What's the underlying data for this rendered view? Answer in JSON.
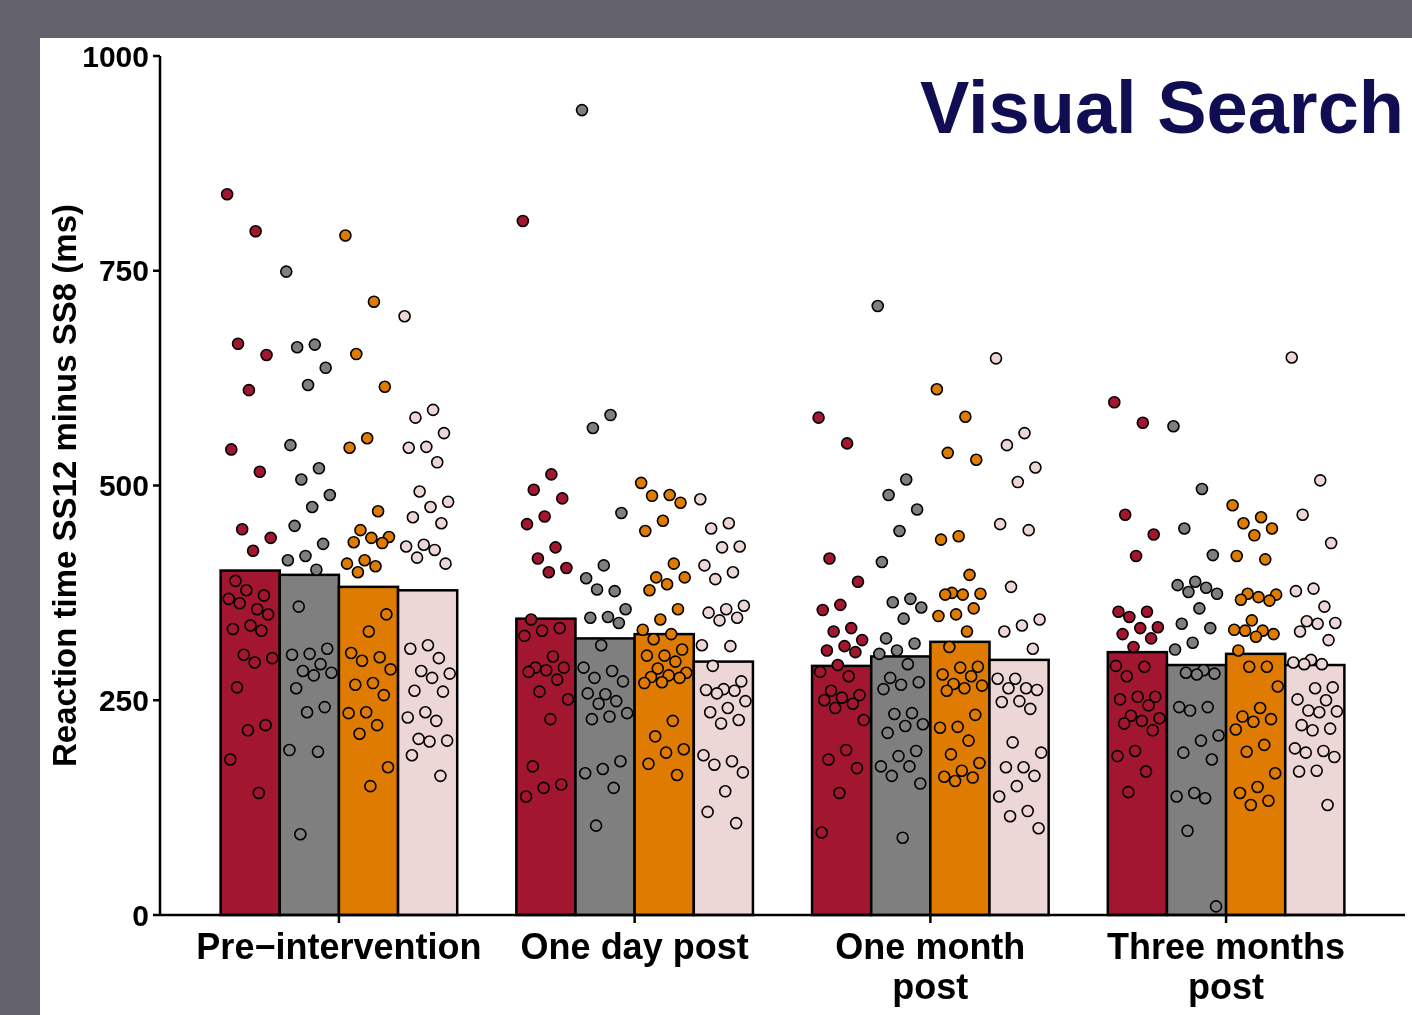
{
  "chart_data": {
    "type": "bar",
    "title": "Visual Search",
    "ylabel": "Reaction time SS12 minus SS8 (ms)",
    "categories": [
      "Pre−intervention",
      "One day post",
      "One month post",
      "Three months post"
    ],
    "ylim": [
      0,
      1000
    ],
    "yticks": [
      0,
      250,
      500,
      750,
      1000
    ],
    "marker": "circle",
    "series": [
      {
        "color": "#a3162f",
        "values": [
          401,
          345,
          290,
          306
        ]
      },
      {
        "color": "#7f7f7f",
        "values": [
          396,
          322,
          301,
          291
        ]
      },
      {
        "color": "#df7b00",
        "values": [
          382,
          327,
          318,
          304
        ]
      },
      {
        "color": "#ecd6d6",
        "values": [
          378,
          295,
          297,
          291
        ]
      },
      {
        "type": "scatter",
        "color": "#a3162f",
        "x": [
          "Pre−intervention",
          "Pre−intervention",
          "Pre−intervention",
          "Pre−intervention",
          "Pre−intervention",
          "Pre−intervention",
          "Pre−intervention",
          "Pre−intervention",
          "Pre−intervention",
          "Pre−intervention",
          "Pre−intervention",
          "Pre−intervention",
          "Pre−intervention",
          "Pre−intervention",
          "Pre−intervention",
          "Pre−intervention",
          "Pre−intervention",
          "Pre−intervention",
          "Pre−intervention",
          "Pre−intervention",
          "Pre−intervention",
          "Pre−intervention",
          "Pre−intervention",
          "Pre−intervention",
          "Pre−intervention",
          "Pre−intervention",
          "Pre−intervention",
          "Pre−intervention",
          "One day post",
          "One day post",
          "One day post",
          "One day post",
          "One day post",
          "One day post",
          "One day post",
          "One day post",
          "One day post",
          "One day post",
          "One day post",
          "One day post",
          "One day post",
          "One day post",
          "One day post",
          "One day post",
          "One day post",
          "One day post",
          "One day post",
          "One day post",
          "One day post",
          "One day post",
          "One day post",
          "One day post",
          "One day post",
          "One day post",
          "One day post",
          "One month post",
          "One month post",
          "One month post",
          "One month post",
          "One month post",
          "One month post",
          "One month post",
          "One month post",
          "One month post",
          "One month post",
          "One month post",
          "One month post",
          "One month post",
          "One month post",
          "One month post",
          "One month post",
          "One month post",
          "One month post",
          "One month post",
          "One month post",
          "One month post",
          "One month post",
          "One month post",
          "One month post",
          "One month post",
          "One month post",
          "One month post",
          "Three months post",
          "Three months post",
          "Three months post",
          "Three months post",
          "Three months post",
          "Three months post",
          "Three months post",
          "Three months post",
          "Three months post",
          "Three months post",
          "Three months post",
          "Three months post",
          "Three months post",
          "Three months post",
          "Three months post",
          "Three months post",
          "Three months post",
          "Three months post",
          "Three months post",
          "Three months post",
          "Three months post",
          "Three months post",
          "Three months post",
          "Three months post",
          "Three months post",
          "Three months post",
          "Three months post",
          "Three months post",
          "Three months post"
        ],
        "values": [
          839,
          796,
          665,
          652,
          611,
          542,
          516,
          449,
          439,
          424,
          389,
          372,
          378,
          368,
          356,
          363,
          350,
          337,
          333,
          331,
          303,
          299,
          294,
          265,
          221,
          215,
          181,
          142,
          808,
          513,
          495,
          485,
          464,
          455,
          428,
          415,
          404,
          399,
          344,
          334,
          331,
          325,
          301,
          288,
          288,
          285,
          283,
          274,
          260,
          251,
          228,
          173,
          152,
          148,
          138,
          579,
          549,
          415,
          388,
          361,
          355,
          334,
          330,
          320,
          313,
          308,
          306,
          291,
          283,
          278,
          261,
          256,
          253,
          250,
          246,
          241,
          227,
          192,
          181,
          171,
          142,
          96,
          597,
          573,
          466,
          443,
          418,
          353,
          353,
          347,
          335,
          334,
          327,
          322,
          312,
          290,
          289,
          278,
          254,
          254,
          251,
          244,
          232,
          229,
          226,
          223,
          215,
          191,
          185,
          167,
          143
        ]
      },
      {
        "type": "scatter",
        "color": "#7f7f7f",
        "x": [
          "Pre−intervention",
          "Pre−intervention",
          "Pre−intervention",
          "Pre−intervention",
          "Pre−intervention",
          "Pre−intervention",
          "Pre−intervention",
          "Pre−intervention",
          "Pre−intervention",
          "Pre−intervention",
          "Pre−intervention",
          "Pre−intervention",
          "Pre−intervention",
          "Pre−intervention",
          "Pre−intervention",
          "Pre−intervention",
          "Pre−intervention",
          "Pre−intervention",
          "Pre−intervention",
          "Pre−intervention",
          "Pre−intervention",
          "Pre−intervention",
          "Pre−intervention",
          "Pre−intervention",
          "Pre−intervention",
          "Pre−intervention",
          "Pre−intervention",
          "Pre−intervention",
          "Pre−intervention",
          "One day post",
          "One day post",
          "One day post",
          "One day post",
          "One day post",
          "One day post",
          "One day post",
          "One day post",
          "One day post",
          "One day post",
          "One day post",
          "One day post",
          "One day post",
          "One day post",
          "One day post",
          "One day post",
          "One day post",
          "One day post",
          "One day post",
          "One day post",
          "One day post",
          "One day post",
          "One day post",
          "One day post",
          "One day post",
          "One day post",
          "One day post",
          "One day post",
          "One day post",
          "One month post",
          "One month post",
          "One month post",
          "One month post",
          "One month post",
          "One month post",
          "One month post",
          "One month post",
          "One month post",
          "One month post",
          "One month post",
          "One month post",
          "One month post",
          "One month post",
          "One month post",
          "One month post",
          "One month post",
          "One month post",
          "One month post",
          "One month post",
          "One month post",
          "One month post",
          "One month post",
          "One month post",
          "One month post",
          "One month post",
          "One month post",
          "One month post",
          "One month post",
          "One month post",
          "One month post",
          "Three months post",
          "Three months post",
          "Three months post",
          "Three months post",
          "Three months post",
          "Three months post",
          "Three months post",
          "Three months post",
          "Three months post",
          "Three months post",
          "Three months post",
          "Three months post",
          "Three months post",
          "Three months post",
          "Three months post",
          "Three months post",
          "Three months post",
          "Three months post",
          "Three months post",
          "Three months post",
          "Three months post",
          "Three months post",
          "Three months post",
          "Three months post",
          "Three months post",
          "Three months post",
          "Three months post",
          "Three months post",
          "Three months post",
          "Three months post"
        ],
        "values": [
          749,
          664,
          661,
          637,
          617,
          547,
          520,
          507,
          489,
          475,
          453,
          432,
          418,
          413,
          402,
          359,
          310,
          304,
          303,
          292,
          284,
          282,
          279,
          264,
          242,
          236,
          192,
          190,
          94,
          937,
          582,
          567,
          468,
          407,
          392,
          377,
          379,
          356,
          347,
          346,
          340,
          314,
          288,
          284,
          276,
          272,
          257,
          258,
          249,
          246,
          235,
          231,
          228,
          179,
          170,
          165,
          148,
          104,
          709,
          507,
          489,
          472,
          447,
          411,
          368,
          364,
          358,
          345,
          322,
          316,
          308,
          304,
          292,
          276,
          271,
          268,
          263,
          235,
          234,
          222,
          220,
          212,
          191,
          185,
          173,
          173,
          162,
          153,
          90,
          569,
          496,
          450,
          419,
          388,
          384,
          381,
          376,
          374,
          357,
          339,
          334,
          317,
          309,
          285,
          282,
          281,
          280,
          242,
          242,
          238,
          209,
          203,
          189,
          181,
          142,
          138,
          136,
          98,
          10
        ]
      },
      {
        "type": "scatter",
        "color": "#df7b00",
        "x": [
          "Pre−intervention",
          "Pre−intervention",
          "Pre−intervention",
          "Pre−intervention",
          "Pre−intervention",
          "Pre−intervention",
          "Pre−intervention",
          "Pre−intervention",
          "Pre−intervention",
          "Pre−intervention",
          "Pre−intervention",
          "Pre−intervention",
          "Pre−intervention",
          "Pre−intervention",
          "Pre−intervention",
          "Pre−intervention",
          "Pre−intervention",
          "Pre−intervention",
          "Pre−intervention",
          "Pre−intervention",
          "Pre−intervention",
          "Pre−intervention",
          "Pre−intervention",
          "Pre−intervention",
          "Pre−intervention",
          "Pre−intervention",
          "Pre−intervention",
          "Pre−intervention",
          "Pre−intervention",
          "Pre−intervention",
          "Pre−intervention",
          "One day post",
          "One day post",
          "One day post",
          "One day post",
          "One day post",
          "One day post",
          "One day post",
          "One day post",
          "One day post",
          "One day post",
          "One day post",
          "One day post",
          "One day post",
          "One day post",
          "One day post",
          "One day post",
          "One day post",
          "One day post",
          "One day post",
          "One day post",
          "One day post",
          "One day post",
          "One day post",
          "One day post",
          "One day post",
          "One day post",
          "One day post",
          "One day post",
          "One day post",
          "One day post",
          "One day post",
          "One day post",
          "One day post",
          "One month post",
          "One month post",
          "One month post",
          "One month post",
          "One month post",
          "One month post",
          "One month post",
          "One month post",
          "One month post",
          "One month post",
          "One month post",
          "One month post",
          "One month post",
          "One month post",
          "One month post",
          "One month post",
          "One month post",
          "One month post",
          "One month post",
          "One month post",
          "One month post",
          "One month post",
          "One month post",
          "One month post",
          "One month post",
          "One month post",
          "One month post",
          "One month post",
          "One month post",
          "One month post",
          "One month post",
          "One month post",
          "One month post",
          "One month post",
          "Three months post",
          "Three months post",
          "Three months post",
          "Three months post",
          "Three months post",
          "Three months post",
          "Three months post",
          "Three months post",
          "Three months post",
          "Three months post",
          "Three months post",
          "Three months post",
          "Three months post",
          "Three months post",
          "Three months post",
          "Three months post",
          "Three months post",
          "Three months post",
          "Three months post",
          "Three months post",
          "Three months post",
          "Three months post",
          "Three months post",
          "Three months post",
          "Three months post",
          "Three months post",
          "Three months post",
          "Three months post",
          "Three months post",
          "Three months post",
          "Three months post",
          "Three months post",
          "Three months post",
          "Three months post"
        ],
        "values": [
          791,
          714,
          653,
          615,
          555,
          544,
          470,
          448,
          440,
          439,
          434,
          433,
          413,
          409,
          406,
          399,
          350,
          330,
          305,
          300,
          296,
          286,
          270,
          268,
          256,
          236,
          235,
          221,
          211,
          172,
          150,
          503,
          489,
          488,
          480,
          459,
          447,
          409,
          393,
          393,
          385,
          378,
          356,
          344,
          332,
          327,
          321,
          309,
          302,
          302,
          295,
          287,
          282,
          279,
          277,
          276,
          271,
          270,
          226,
          208,
          193,
          189,
          176,
          163,
          612,
          580,
          538,
          530,
          441,
          437,
          396,
          375,
          374,
          373,
          373,
          357,
          350,
          348,
          330,
          312,
          289,
          288,
          280,
          278,
          269,
          267,
          264,
          261,
          233,
          219,
          218,
          203,
          187,
          177,
          168,
          161,
          160,
          156,
          477,
          463,
          456,
          450,
          442,
          418,
          414,
          374,
          373,
          370,
          367,
          366,
          343,
          332,
          331,
          331,
          327,
          324,
          308,
          289,
          289,
          266,
          241,
          231,
          228,
          225,
          216,
          198,
          190,
          165,
          149,
          142,
          133,
          128
        ]
      },
      {
        "type": "scatter",
        "color": "#ecd6d6",
        "x": [
          "Pre−intervention",
          "Pre−intervention",
          "Pre−intervention",
          "Pre−intervention",
          "Pre−intervention",
          "Pre−intervention",
          "Pre−intervention",
          "Pre−intervention",
          "Pre−intervention",
          "Pre−intervention",
          "Pre−intervention",
          "Pre−intervention",
          "Pre−intervention",
          "Pre−intervention",
          "Pre−intervention",
          "Pre−intervention",
          "Pre−intervention",
          "Pre−intervention",
          "Pre−intervention",
          "Pre−intervention",
          "Pre−intervention",
          "Pre−intervention",
          "Pre−intervention",
          "Pre−intervention",
          "Pre−intervention",
          "Pre−intervention",
          "Pre−intervention",
          "Pre−intervention",
          "Pre−intervention",
          "Pre−intervention",
          "Pre−intervention",
          "Pre−intervention",
          "Pre−intervention",
          "One day post",
          "One day post",
          "One day post",
          "One day post",
          "One day post",
          "One day post",
          "One day post",
          "One day post",
          "One day post",
          "One day post",
          "One day post",
          "One day post",
          "One day post",
          "One day post",
          "One day post",
          "One day post",
          "One day post",
          "One day post",
          "One day post",
          "One day post",
          "One day post",
          "One day post",
          "One day post",
          "One day post",
          "One day post",
          "One day post",
          "One day post",
          "One day post",
          "One day post",
          "One day post",
          "One day post",
          "One day post",
          "One day post",
          "One month post",
          "One month post",
          "One month post",
          "One month post",
          "One month post",
          "One month post",
          "One month post",
          "One month post",
          "One month post",
          "One month post",
          "One month post",
          "One month post",
          "One month post",
          "One month post",
          "One month post",
          "One month post",
          "One month post",
          "One month post",
          "One month post",
          "One month post",
          "One month post",
          "One month post",
          "One month post",
          "One month post",
          "One month post",
          "One month post",
          "One month post",
          "One month post",
          "One month post",
          "One month post",
          "Three months post",
          "Three months post",
          "Three months post",
          "Three months post",
          "Three months post",
          "Three months post",
          "Three months post",
          "Three months post",
          "Three months post",
          "Three months post",
          "Three months post",
          "Three months post",
          "Three months post",
          "Three months post",
          "Three months post",
          "Three months post",
          "Three months post",
          "Three months post",
          "Three months post",
          "Three months post",
          "Three months post",
          "Three months post",
          "Three months post",
          "Three months post",
          "Three months post",
          "Three months post",
          "Three months post",
          "Three months post",
          "Three months post",
          "Three months post",
          "Three months post",
          "Three months post",
          "Three months post"
        ],
        "values": [
          697,
          588,
          579,
          561,
          545,
          544,
          527,
          493,
          481,
          475,
          463,
          456,
          431,
          429,
          425,
          416,
          409,
          314,
          310,
          299,
          284,
          281,
          276,
          261,
          260,
          236,
          230,
          226,
          205,
          203,
          202,
          186,
          162,
          484,
          456,
          450,
          429,
          428,
          407,
          399,
          391,
          360,
          356,
          352,
          346,
          343,
          314,
          313,
          290,
          272,
          263,
          262,
          261,
          258,
          249,
          241,
          236,
          227,
          223,
          186,
          179,
          175,
          166,
          144,
          120,
          107,
          648,
          561,
          547,
          521,
          504,
          455,
          448,
          382,
          344,
          337,
          330,
          310,
          275,
          275,
          264,
          264,
          262,
          249,
          248,
          240,
          201,
          189,
          172,
          172,
          162,
          150,
          138,
          121,
          115,
          101,
          649,
          506,
          466,
          433,
          380,
          377,
          359,
          342,
          340,
          339,
          330,
          320,
          297,
          294,
          292,
          292,
          265,
          264,
          251,
          250,
          238,
          237,
          236,
          221,
          217,
          215,
          194,
          191,
          189,
          184,
          168,
          167,
          128
        ]
      }
    ]
  }
}
